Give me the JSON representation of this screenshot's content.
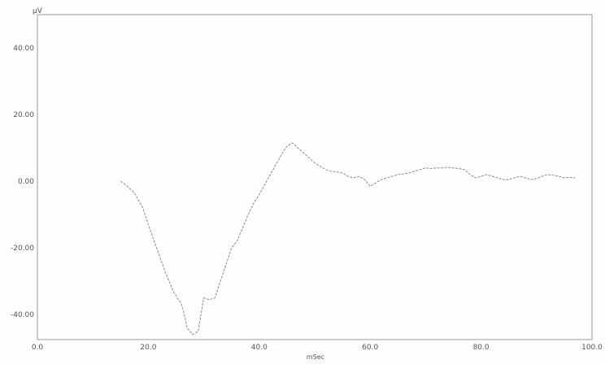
{
  "chart_data": {
    "type": "line",
    "title": "",
    "xlabel": "mSec",
    "ylabel": "",
    "corner_label": "µV",
    "xlim": [
      0,
      100
    ],
    "ylim": [
      -47.5,
      50
    ],
    "grid": true,
    "x_ticks": [
      0,
      20,
      40,
      60,
      80,
      100
    ],
    "x_tick_labels": [
      "0.0",
      "20.0",
      "40.0",
      "60.0",
      "80.0",
      "100.0"
    ],
    "y_ticks": [
      40,
      20,
      0,
      -20,
      -40
    ],
    "y_tick_labels": [
      "40.00",
      "20.00",
      "0.00",
      "-20.00",
      "-40.00"
    ],
    "minor_y_ticks": [
      10,
      -10,
      -30
    ],
    "minor_x_ticks": [
      10,
      30,
      50,
      70,
      90
    ],
    "series": [
      {
        "name": "",
        "color": "#8a8a8a",
        "x": [
          15.0,
          16.2,
          17.5,
          19.0,
          20.0,
          21.5,
          23.0,
          24.5,
          26.0,
          26.5,
          27.0,
          28.0,
          29.0,
          29.5,
          30.0,
          31.0,
          32.0,
          33.0,
          34.0,
          35.0,
          36.0,
          37.0,
          38.0,
          39.0,
          40.0,
          41.0,
          42.0,
          43.0,
          44.0,
          45.0,
          46.0,
          47.0,
          48.0,
          49.0,
          50.0,
          51.0,
          52.0,
          53.0,
          54.0,
          55.0,
          56.0,
          57.0,
          58.0,
          59.0,
          60.0,
          61.0,
          62.0,
          63.0,
          64.0,
          65.0,
          66.0,
          67.0,
          68.0,
          69.0,
          70.0,
          71.0,
          72.0,
          73.0,
          74.0,
          75.0,
          76.0,
          77.0,
          78.0,
          79.0,
          80.0,
          81.0,
          82.0,
          83.0,
          84.0,
          85.0,
          86.0,
          87.0,
          88.0,
          89.0,
          90.0,
          91.0,
          92.0,
          93.0,
          94.0,
          95.0,
          96.0,
          97.0
        ],
        "y": [
          0.0,
          -1.5,
          -3.5,
          -8.0,
          -13.0,
          -20.0,
          -27.0,
          -33.0,
          -37.0,
          -40.0,
          -44.0,
          -46.0,
          -45.0,
          -40.0,
          -35.0,
          -35.5,
          -35.0,
          -30.0,
          -25.0,
          -20.0,
          -18.0,
          -14.0,
          -10.0,
          -6.5,
          -4.0,
          -1.0,
          2.0,
          5.0,
          8.0,
          10.5,
          11.5,
          10.0,
          8.5,
          7.0,
          5.5,
          4.5,
          3.5,
          3.0,
          2.8,
          2.5,
          1.5,
          1.0,
          1.5,
          0.5,
          -1.5,
          -0.5,
          0.5,
          1.0,
          1.5,
          2.0,
          2.2,
          2.5,
          3.0,
          3.5,
          4.0,
          3.8,
          4.0,
          4.0,
          4.2,
          4.0,
          3.8,
          3.5,
          2.0,
          1.0,
          1.5,
          2.0,
          1.5,
          1.0,
          0.5,
          0.5,
          1.0,
          1.5,
          1.0,
          0.5,
          0.8,
          1.5,
          2.0,
          1.8,
          1.5,
          1.0,
          1.2,
          1.0
        ]
      }
    ]
  }
}
